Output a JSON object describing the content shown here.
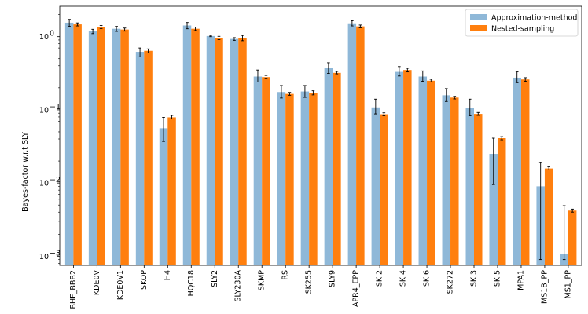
{
  "chart_data": {
    "type": "bar",
    "title": "",
    "xlabel": "",
    "ylabel": "Bayes-factor w.r.t SLY",
    "yscale": "log",
    "ylim": [
      0.00075,
      2.6
    ],
    "yticks": [
      0.001,
      0.01,
      0.1,
      1
    ],
    "ytick_labels": [
      {
        "base": "10",
        "exp": "−3"
      },
      {
        "base": "10",
        "exp": "−2"
      },
      {
        "base": "10",
        "exp": "−1"
      },
      {
        "base": "10",
        "exp": "0"
      }
    ],
    "grid": false,
    "legend_position": "top-right",
    "categories": [
      "BHF_BBB2",
      "KDE0V",
      "KDE0V1",
      "SKOP",
      "H4",
      "HQC18",
      "SLY2",
      "SLY230A",
      "SKMP",
      "RS",
      "SK255",
      "SLY9",
      "APR4_EPP",
      "SKI2",
      "SKI4",
      "SKI6",
      "SK272",
      "SKI3",
      "SKI5",
      "MPA1",
      "MS1B_PP",
      "MS1_PP"
    ],
    "series": [
      {
        "name": "Approximation-method",
        "color": "#8fb8d8",
        "values": [
          1.55,
          1.18,
          1.28,
          0.62,
          0.056,
          1.42,
          1.02,
          0.93,
          0.285,
          0.175,
          0.178,
          0.37,
          1.52,
          0.108,
          0.33,
          0.285,
          0.158,
          0.105,
          0.025,
          0.275,
          0.009,
          0.00108
        ],
        "err_low": [
          1.38,
          1.1,
          1.18,
          0.53,
          0.037,
          1.28,
          1.0,
          0.89,
          0.24,
          0.145,
          0.148,
          0.315,
          1.4,
          0.088,
          0.29,
          0.245,
          0.13,
          0.083,
          0.0095,
          0.235,
          0.0009,
          0.0009
        ],
        "err_high": [
          1.72,
          1.26,
          1.38,
          0.7,
          0.079,
          1.56,
          1.04,
          0.97,
          0.35,
          0.215,
          0.215,
          0.44,
          1.65,
          0.14,
          0.39,
          0.34,
          0.195,
          0.14,
          0.041,
          0.33,
          0.019,
          0.0049
        ]
      },
      {
        "name": "Nested-sampling",
        "color": "#ff7f0e",
        "values": [
          1.47,
          1.35,
          1.25,
          0.64,
          0.079,
          1.28,
          0.96,
          0.96,
          0.28,
          0.165,
          0.17,
          0.32,
          1.38,
          0.087,
          0.35,
          0.25,
          0.147,
          0.088,
          0.041,
          0.26,
          0.0158,
          0.0042
        ],
        "err_low": [
          1.4,
          1.29,
          1.19,
          0.6,
          0.075,
          1.21,
          0.91,
          0.88,
          0.27,
          0.158,
          0.16,
          0.31,
          1.32,
          0.083,
          0.33,
          0.24,
          0.141,
          0.084,
          0.039,
          0.245,
          0.0151,
          0.004
        ],
        "err_high": [
          1.54,
          1.42,
          1.31,
          0.68,
          0.084,
          1.35,
          1.01,
          1.04,
          0.295,
          0.173,
          0.182,
          0.335,
          1.44,
          0.091,
          0.37,
          0.262,
          0.153,
          0.092,
          0.043,
          0.275,
          0.0166,
          0.0044
        ]
      }
    ]
  }
}
